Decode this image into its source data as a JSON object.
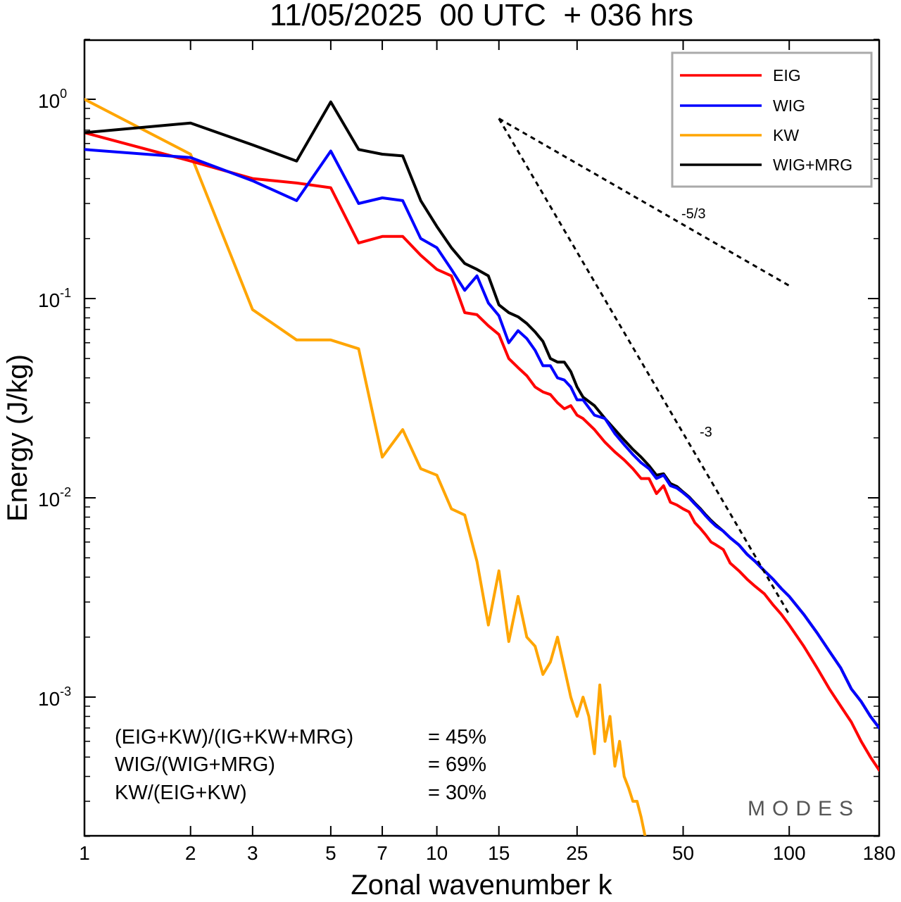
{
  "chart_data": {
    "type": "line",
    "title": "11/05/2025  00 UTC  + 036 hrs",
    "xlabel": "Zonal wavenumber k",
    "ylabel": "Energy (J/kg)",
    "xscale": "log",
    "yscale": "log",
    "xlim": [
      1,
      180
    ],
    "ylim": [
      0.0002,
      2.0
    ],
    "xticks": [
      1,
      2,
      3,
      5,
      7,
      10,
      15,
      25,
      50,
      100,
      180
    ],
    "xtick_labels": [
      "1",
      "2",
      "3",
      "5",
      "7",
      "10",
      "15",
      "25",
      "50",
      "100",
      "180"
    ],
    "yticks": [
      {
        "value": 1.0,
        "base": "10",
        "exp": "0"
      },
      {
        "value": 0.1,
        "base": "10",
        "exp": "-1"
      },
      {
        "value": 0.01,
        "base": "10",
        "exp": "-2"
      },
      {
        "value": 0.001,
        "base": "10",
        "exp": "-3"
      }
    ],
    "legend_position": "top-right",
    "series": [
      {
        "name": "EIG",
        "color": "#ff0000",
        "points": [
          [
            1,
            0.68
          ],
          [
            2,
            0.49
          ],
          [
            3,
            0.4
          ],
          [
            4,
            0.38
          ],
          [
            5,
            0.36
          ],
          [
            6,
            0.19
          ],
          [
            7,
            0.205
          ],
          [
            8,
            0.205
          ],
          [
            9,
            0.165
          ],
          [
            10,
            0.14
          ],
          [
            11,
            0.13
          ],
          [
            12,
            0.085
          ],
          [
            13,
            0.083
          ],
          [
            14,
            0.073
          ],
          [
            15,
            0.066
          ],
          [
            16,
            0.05
          ],
          [
            17,
            0.045
          ],
          [
            18,
            0.041
          ],
          [
            19,
            0.036
          ],
          [
            20,
            0.034
          ],
          [
            21,
            0.033
          ],
          [
            22,
            0.03
          ],
          [
            23,
            0.028
          ],
          [
            24,
            0.029
          ],
          [
            25,
            0.026
          ],
          [
            26,
            0.025
          ],
          [
            28,
            0.022
          ],
          [
            30,
            0.019
          ],
          [
            32,
            0.017
          ],
          [
            34,
            0.0155
          ],
          [
            36,
            0.014
          ],
          [
            38,
            0.0125
          ],
          [
            40,
            0.0125
          ],
          [
            42,
            0.0105
          ],
          [
            44,
            0.0115
          ],
          [
            46,
            0.0095
          ],
          [
            48,
            0.0092
          ],
          [
            50,
            0.0088
          ],
          [
            52,
            0.0085
          ],
          [
            54,
            0.0075
          ],
          [
            56,
            0.007
          ],
          [
            58,
            0.0065
          ],
          [
            60,
            0.006
          ],
          [
            62,
            0.0058
          ],
          [
            65,
            0.0055
          ],
          [
            68,
            0.0047
          ],
          [
            72,
            0.0043
          ],
          [
            76,
            0.0039
          ],
          [
            80,
            0.0036
          ],
          [
            85,
            0.0033
          ],
          [
            90,
            0.0029
          ],
          [
            95,
            0.0026
          ],
          [
            100,
            0.0023
          ],
          [
            110,
            0.0018
          ],
          [
            120,
            0.0014
          ],
          [
            130,
            0.0011
          ],
          [
            140,
            0.0009
          ],
          [
            150,
            0.00075
          ],
          [
            160,
            0.0006
          ],
          [
            170,
            0.0005
          ],
          [
            180,
            0.00043
          ]
        ]
      },
      {
        "name": "WIG",
        "color": "#0000ff",
        "points": [
          [
            1,
            0.56
          ],
          [
            2,
            0.51
          ],
          [
            3,
            0.39
          ],
          [
            4,
            0.31
          ],
          [
            5,
            0.55
          ],
          [
            6,
            0.3
          ],
          [
            7,
            0.32
          ],
          [
            8,
            0.31
          ],
          [
            9,
            0.2
          ],
          [
            10,
            0.18
          ],
          [
            11,
            0.14
          ],
          [
            12,
            0.11
          ],
          [
            13,
            0.13
          ],
          [
            14,
            0.095
          ],
          [
            15,
            0.082
          ],
          [
            16,
            0.06
          ],
          [
            17,
            0.069
          ],
          [
            18,
            0.063
          ],
          [
            19,
            0.055
          ],
          [
            20,
            0.046
          ],
          [
            21,
            0.046
          ],
          [
            22,
            0.04
          ],
          [
            23,
            0.039
          ],
          [
            24,
            0.036
          ],
          [
            25,
            0.031
          ],
          [
            26,
            0.031
          ],
          [
            28,
            0.026
          ],
          [
            30,
            0.025
          ],
          [
            32,
            0.021
          ],
          [
            34,
            0.0185
          ],
          [
            36,
            0.0165
          ],
          [
            38,
            0.015
          ],
          [
            40,
            0.014
          ],
          [
            42,
            0.0125
          ],
          [
            44,
            0.013
          ],
          [
            46,
            0.0115
          ],
          [
            48,
            0.0112
          ],
          [
            50,
            0.0106
          ],
          [
            52,
            0.01
          ],
          [
            54,
            0.0093
          ],
          [
            56,
            0.0087
          ],
          [
            58,
            0.0081
          ],
          [
            60,
            0.0076
          ],
          [
            62,
            0.0072
          ],
          [
            65,
            0.0068
          ],
          [
            68,
            0.0063
          ],
          [
            72,
            0.0058
          ],
          [
            76,
            0.0052
          ],
          [
            80,
            0.0048
          ],
          [
            85,
            0.0043
          ],
          [
            90,
            0.0039
          ],
          [
            95,
            0.0035
          ],
          [
            100,
            0.0032
          ],
          [
            110,
            0.0026
          ],
          [
            120,
            0.0021
          ],
          [
            130,
            0.0017
          ],
          [
            140,
            0.0014
          ],
          [
            150,
            0.0011
          ],
          [
            160,
            0.00095
          ],
          [
            170,
            0.0008
          ],
          [
            180,
            0.0007
          ]
        ]
      },
      {
        "name": "KW",
        "color": "#ffa500",
        "points": [
          [
            1,
            1.0
          ],
          [
            2,
            0.53
          ],
          [
            3,
            0.088
          ],
          [
            4,
            0.062
          ],
          [
            5,
            0.062
          ],
          [
            6,
            0.056
          ],
          [
            7,
            0.016
          ],
          [
            8,
            0.022
          ],
          [
            9,
            0.014
          ],
          [
            10,
            0.013
          ],
          [
            11,
            0.0088
          ],
          [
            12,
            0.0082
          ],
          [
            13,
            0.0048
          ],
          [
            14,
            0.0023
          ],
          [
            15,
            0.0043
          ],
          [
            16,
            0.0019
          ],
          [
            17,
            0.0032
          ],
          [
            18,
            0.002
          ],
          [
            19,
            0.0018
          ],
          [
            20,
            0.0013
          ],
          [
            21,
            0.0015
          ],
          [
            22,
            0.002
          ],
          [
            23,
            0.0014
          ],
          [
            24,
            0.001
          ],
          [
            25,
            0.0008
          ],
          [
            26,
            0.001
          ],
          [
            27,
            0.0008
          ],
          [
            28,
            0.00052
          ],
          [
            29,
            0.00115
          ],
          [
            30,
            0.0006
          ],
          [
            31,
            0.0008
          ],
          [
            32,
            0.00045
          ],
          [
            33,
            0.0006
          ],
          [
            34,
            0.0004
          ],
          [
            35,
            0.00035
          ],
          [
            36,
            0.0003
          ],
          [
            37,
            0.0003
          ],
          [
            38,
            0.00025
          ],
          [
            39,
            0.0002
          ]
        ]
      },
      {
        "name": "WIG+MRG",
        "color": "#000000",
        "points": [
          [
            1,
            0.68
          ],
          [
            2,
            0.76
          ],
          [
            3,
            0.59
          ],
          [
            4,
            0.49
          ],
          [
            5,
            0.97
          ],
          [
            6,
            0.56
          ],
          [
            7,
            0.53
          ],
          [
            8,
            0.52
          ],
          [
            9,
            0.31
          ],
          [
            10,
            0.23
          ],
          [
            11,
            0.18
          ],
          [
            12,
            0.15
          ],
          [
            13,
            0.14
          ],
          [
            14,
            0.13
          ],
          [
            15,
            0.093
          ],
          [
            16,
            0.085
          ],
          [
            17,
            0.081
          ],
          [
            18,
            0.075
          ],
          [
            19,
            0.068
          ],
          [
            20,
            0.061
          ],
          [
            21,
            0.05
          ],
          [
            22,
            0.048
          ],
          [
            23,
            0.048
          ],
          [
            24,
            0.043
          ],
          [
            25,
            0.036
          ],
          [
            26,
            0.032
          ],
          [
            28,
            0.029
          ],
          [
            30,
            0.025
          ],
          [
            32,
            0.022
          ],
          [
            34,
            0.0195
          ],
          [
            36,
            0.0175
          ],
          [
            38,
            0.016
          ],
          [
            40,
            0.0145
          ],
          [
            42,
            0.013
          ],
          [
            44,
            0.0132
          ],
          [
            46,
            0.0118
          ],
          [
            48,
            0.0114
          ],
          [
            50,
            0.0107
          ],
          [
            52,
            0.0101
          ],
          [
            54,
            0.0094
          ],
          [
            56,
            0.0088
          ],
          [
            58,
            0.0082
          ],
          [
            60,
            0.0077
          ],
          [
            62,
            0.0073
          ],
          [
            65,
            0.0068
          ],
          [
            68,
            0.0063
          ],
          [
            72,
            0.0058
          ],
          [
            76,
            0.0052
          ],
          [
            80,
            0.0048
          ],
          [
            85,
            0.0043
          ],
          [
            90,
            0.0039
          ],
          [
            95,
            0.0035
          ],
          [
            100,
            0.0032
          ],
          [
            110,
            0.0026
          ],
          [
            120,
            0.0021
          ],
          [
            130,
            0.0017
          ],
          [
            140,
            0.0014
          ],
          [
            150,
            0.0011
          ],
          [
            160,
            0.00095
          ],
          [
            170,
            0.0008
          ],
          [
            180,
            0.0007
          ]
        ]
      }
    ],
    "reference_lines": [
      {
        "label": "-5/3",
        "points": [
          [
            15,
            0.8
          ],
          [
            100,
            0.116
          ]
        ]
      },
      {
        "label": "-3",
        "points": [
          [
            15,
            0.8
          ],
          [
            100,
            0.0026
          ]
        ]
      }
    ],
    "annotations": {
      "stats": [
        {
          "label": "(EIG+KW)/(IG+KW+MRG)",
          "value": "= 45%"
        },
        {
          "label": "WIG/(WIG+MRG)",
          "value": "= 69%"
        },
        {
          "label": "KW/(EIG+KW)",
          "value": "= 30%"
        }
      ],
      "watermark": "MODES"
    },
    "grid": false
  }
}
